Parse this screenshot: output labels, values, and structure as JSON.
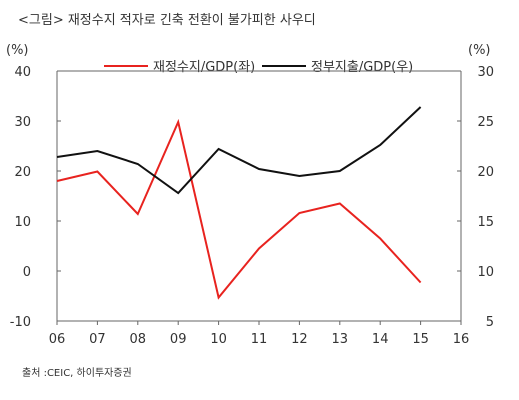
{
  "header": {
    "title": "<그림> 재정수지 적자로 긴축 전환이 불가피한 사우디"
  },
  "footer": {
    "source": "출처 :CEIC, 하이투자증권"
  },
  "chart_data": {
    "type": "line",
    "title": "<그림> 재정수지 적자로 긴축 전환이 불가피한 사우디",
    "categories": [
      "06",
      "07",
      "08",
      "09",
      "10",
      "11",
      "12",
      "13",
      "14",
      "15",
      "16"
    ],
    "y_left": {
      "unit": "(%)",
      "range": [
        -10,
        40
      ],
      "ticks": [
        "-10",
        "0",
        "10",
        "20",
        "30",
        "40"
      ]
    },
    "y_right": {
      "unit": "(%)",
      "range": [
        5,
        30
      ],
      "ticks": [
        "5",
        "10",
        "15",
        "20",
        "25",
        "30"
      ]
    },
    "legend_position": "top",
    "grid": false,
    "series": [
      {
        "name": "재정수지/GDP(좌)",
        "axis": "left",
        "color": "#e8231f",
        "values": [
          18.0,
          19.9,
          11.4,
          29.8,
          -5.3,
          4.5,
          11.6,
          13.5,
          6.5,
          -2.3,
          null
        ]
      },
      {
        "name": "정부지출/GDP(우)",
        "axis": "right",
        "color": "#111111",
        "values": [
          21.4,
          22.0,
          20.7,
          17.8,
          22.2,
          20.2,
          19.5,
          20.0,
          22.6,
          26.4,
          null
        ]
      }
    ]
  }
}
